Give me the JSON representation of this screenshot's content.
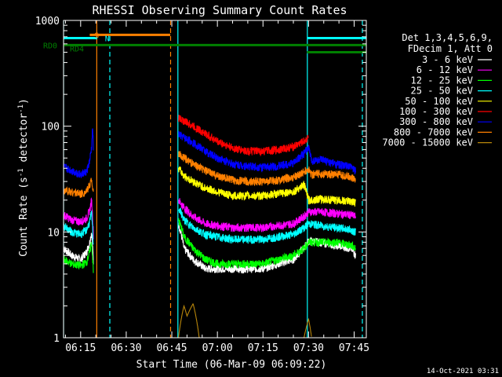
{
  "chart_data": {
    "type": "line",
    "title": "RHESSI Observing Summary Count Rates",
    "xlabel": "Start Time (06-Mar-09 06:09:22)",
    "ylabel_parts": [
      "Count Rate (s",
      "-1",
      " detector",
      "-1",
      ")"
    ],
    "yscale": "log",
    "ylim": [
      1,
      1000
    ],
    "xlim_minutes": [
      369.37,
      469.0
    ],
    "x_ticks": [
      {
        "minute": 375,
        "label": "06:15"
      },
      {
        "minute": 390,
        "label": "06:30"
      },
      {
        "minute": 405,
        "label": "06:45"
      },
      {
        "minute": 420,
        "label": "07:00"
      },
      {
        "minute": 435,
        "label": "07:15"
      },
      {
        "minute": 450,
        "label": "07:30"
      },
      {
        "minute": 465,
        "label": "07:45"
      }
    ],
    "y_ticks": [
      {
        "value": 1,
        "label": "1"
      },
      {
        "value": 10,
        "label": "10"
      },
      {
        "value": 100,
        "label": "100"
      },
      {
        "value": 1000,
        "label": "1000"
      }
    ],
    "legend_header": [
      "Det 1,3,4,5,6,9,",
      "FDecim 1, Att 0"
    ],
    "legend_position": "right",
    "timestamp": "14-Oct-2021 03:31",
    "series": [
      {
        "name": "3 - 6 keV",
        "color": "#ffffff",
        "points": [
          [
            369.4,
            7
          ],
          [
            372,
            6
          ],
          [
            375,
            5.5
          ],
          [
            377,
            6.5
          ],
          [
            378,
            8
          ],
          [
            378.6,
            10
          ],
          [
            379.2,
            5
          ],
          [
            379.8,
            null
          ],
          [
            407,
            null
          ],
          [
            407.2,
            12
          ],
          [
            409,
            7
          ],
          [
            412,
            5.5
          ],
          [
            416,
            4.5
          ],
          [
            420,
            4.5
          ],
          [
            425,
            4.5
          ],
          [
            430,
            4.5
          ],
          [
            435,
            4.5
          ],
          [
            440,
            5
          ],
          [
            445,
            5.5
          ],
          [
            448.5,
            7
          ],
          [
            450,
            8.2
          ],
          [
            454,
            8
          ],
          [
            459,
            7.5
          ],
          [
            464,
            7
          ],
          [
            465.5,
            6
          ]
        ]
      },
      {
        "name": "6 - 12 keV",
        "color": "#ff00ff",
        "points": [
          [
            369.4,
            14.5
          ],
          [
            372,
            13
          ],
          [
            375,
            12.5
          ],
          [
            377,
            13.5
          ],
          [
            378,
            16
          ],
          [
            378.6,
            20
          ],
          [
            379.2,
            9
          ],
          [
            379.8,
            null
          ],
          [
            407,
            null
          ],
          [
            407.2,
            20
          ],
          [
            409,
            17
          ],
          [
            412,
            14
          ],
          [
            416,
            12
          ],
          [
            420,
            11.5
          ],
          [
            425,
            11
          ],
          [
            430,
            11
          ],
          [
            435,
            11
          ],
          [
            440,
            11.5
          ],
          [
            445,
            12
          ],
          [
            448.5,
            14
          ],
          [
            450,
            15.5
          ],
          [
            454,
            15.5
          ],
          [
            459,
            15
          ],
          [
            464,
            14.5
          ],
          [
            465.5,
            14
          ]
        ]
      },
      {
        "name": "12 - 25 keV",
        "color": "#00ff00",
        "points": [
          [
            369.4,
            5.5
          ],
          [
            372,
            5
          ],
          [
            375,
            4.8
          ],
          [
            377,
            5.2
          ],
          [
            378,
            6.5
          ],
          [
            378.6,
            8
          ],
          [
            379.2,
            4
          ],
          [
            379.8,
            null
          ],
          [
            407,
            null
          ],
          [
            407.2,
            13
          ],
          [
            409,
            9
          ],
          [
            412,
            7
          ],
          [
            416,
            5.5
          ],
          [
            420,
            5
          ],
          [
            425,
            5
          ],
          [
            430,
            5
          ],
          [
            435,
            5
          ],
          [
            440,
            5.5
          ],
          [
            445,
            6
          ],
          [
            448.5,
            7
          ],
          [
            450,
            8
          ],
          [
            454,
            8
          ],
          [
            459,
            8
          ],
          [
            464,
            7.5
          ],
          [
            465.5,
            7
          ]
        ]
      },
      {
        "name": "25 - 50 keV",
        "color": "#00ffff",
        "points": [
          [
            369.4,
            11.5
          ],
          [
            372,
            10
          ],
          [
            375,
            9.5
          ],
          [
            377,
            10.5
          ],
          [
            378,
            12.5
          ],
          [
            378.6,
            15
          ],
          [
            379.2,
            7
          ],
          [
            379.8,
            null
          ],
          [
            407,
            null
          ],
          [
            407.2,
            17
          ],
          [
            409,
            13
          ],
          [
            412,
            11
          ],
          [
            416,
            9.5
          ],
          [
            420,
            9
          ],
          [
            425,
            8.5
          ],
          [
            430,
            8.5
          ],
          [
            435,
            8.5
          ],
          [
            440,
            9
          ],
          [
            445,
            9.5
          ],
          [
            448.5,
            11
          ],
          [
            450,
            12
          ],
          [
            454,
            11.5
          ],
          [
            459,
            11
          ],
          [
            464,
            10.5
          ],
          [
            465.5,
            10
          ]
        ]
      },
      {
        "name": "50 - 100 keV",
        "color": "#ffff00",
        "points": [
          [
            407.2,
            40
          ],
          [
            409,
            34
          ],
          [
            412,
            30
          ],
          [
            416,
            26
          ],
          [
            420,
            24
          ],
          [
            425,
            22
          ],
          [
            430,
            22
          ],
          [
            435,
            22
          ],
          [
            440,
            23
          ],
          [
            445,
            24
          ],
          [
            448.5,
            28
          ],
          [
            450,
            20
          ],
          [
            454,
            20.5
          ],
          [
            459,
            20
          ],
          [
            464,
            19.5
          ],
          [
            465.5,
            19
          ]
        ]
      },
      {
        "name": "100 - 300 keV",
        "color": "#ff0000",
        "points": [
          [
            407.2,
            120
          ],
          [
            409,
            112
          ],
          [
            412,
            100
          ],
          [
            416,
            85
          ],
          [
            420,
            72
          ],
          [
            425,
            62
          ],
          [
            430,
            58
          ],
          [
            435,
            58
          ],
          [
            440,
            60
          ],
          [
            445,
            64
          ],
          [
            448.5,
            72
          ],
          [
            450,
            78
          ]
        ]
      },
      {
        "name": "300 - 800 keV",
        "color": "#0000ff",
        "points": [
          [
            369.4,
            41
          ],
          [
            372,
            38
          ],
          [
            375,
            35
          ],
          [
            377,
            37
          ],
          [
            378,
            47
          ],
          [
            378.6,
            62
          ],
          [
            379,
            100
          ],
          [
            379.2,
            55
          ],
          [
            379.8,
            null
          ],
          [
            407,
            null
          ],
          [
            407.2,
            84
          ],
          [
            409,
            78
          ],
          [
            412,
            70
          ],
          [
            416,
            58
          ],
          [
            420,
            50
          ],
          [
            425,
            44
          ],
          [
            430,
            42
          ],
          [
            435,
            41
          ],
          [
            440,
            42
          ],
          [
            445,
            45
          ],
          [
            448.5,
            55
          ],
          [
            450,
            63
          ],
          [
            451,
            47
          ],
          [
            454,
            48
          ],
          [
            459,
            44
          ],
          [
            464,
            41
          ],
          [
            465.5,
            38
          ]
        ]
      },
      {
        "name": "800 - 7000 keV",
        "color": "#ff8000",
        "points": [
          [
            369.4,
            25
          ],
          [
            372,
            24
          ],
          [
            375,
            23
          ],
          [
            377,
            24
          ],
          [
            378,
            28
          ],
          [
            378.6,
            32
          ],
          [
            379.2,
            22
          ],
          [
            379.8,
            null
          ],
          [
            407,
            null
          ],
          [
            407.2,
            55
          ],
          [
            409,
            50
          ],
          [
            412,
            44
          ],
          [
            416,
            38
          ],
          [
            420,
            34
          ],
          [
            425,
            31
          ],
          [
            430,
            30
          ],
          [
            435,
            30
          ],
          [
            440,
            31
          ],
          [
            445,
            33
          ],
          [
            448.5,
            37
          ],
          [
            450,
            39
          ],
          [
            451,
            35
          ],
          [
            454,
            35.5
          ],
          [
            459,
            35
          ],
          [
            464,
            33
          ],
          [
            465.5,
            31
          ]
        ]
      },
      {
        "name": "7000 - 15000 keV",
        "color": "#b8860b",
        "points": [
          [
            407.2,
            1
          ],
          [
            409,
            2
          ],
          [
            410,
            1.6
          ],
          [
            412,
            2.1
          ],
          [
            414,
            1
          ],
          [
            420,
            1
          ],
          [
            448.5,
            1
          ],
          [
            450,
            1.5
          ],
          [
            451,
            1
          ]
        ]
      }
    ],
    "rhessi_flags": [
      {
        "label": "S",
        "color": "#ff8000",
        "y": 730,
        "start": 378,
        "end": 404.5
      },
      {
        "label": "N",
        "color": "#00ffff",
        "y": 680,
        "start": 369.37,
        "end": 380.5,
        "ends2": [
          [
            449.5,
            469.0
          ]
        ]
      },
      {
        "label": "RD0",
        "color": "#008000",
        "y": 585,
        "start": 369.37,
        "end": 449.5,
        "ends2": [
          [
            449.5,
            469.0
          ]
        ]
      },
      {
        "label": "RD4",
        "color": "#008000",
        "y": 500,
        "start": 449.5,
        "end": 469.0
      }
    ],
    "vlines": [
      {
        "x": 369.37,
        "color": "#00ffff",
        "style": "solid"
      },
      {
        "x": 380.3,
        "color": "#ff8000",
        "style": "solid"
      },
      {
        "x": 384.6,
        "color": "#00ffff",
        "style": "dashed"
      },
      {
        "x": 404.6,
        "color": "#ff8000",
        "style": "dashed"
      },
      {
        "x": 407.0,
        "color": "#00ffff",
        "style": "solid"
      },
      {
        "x": 449.6,
        "color": "#00ffff",
        "style": "solid"
      },
      {
        "x": 467.7,
        "color": "#00ffff",
        "style": "dashed"
      }
    ]
  }
}
